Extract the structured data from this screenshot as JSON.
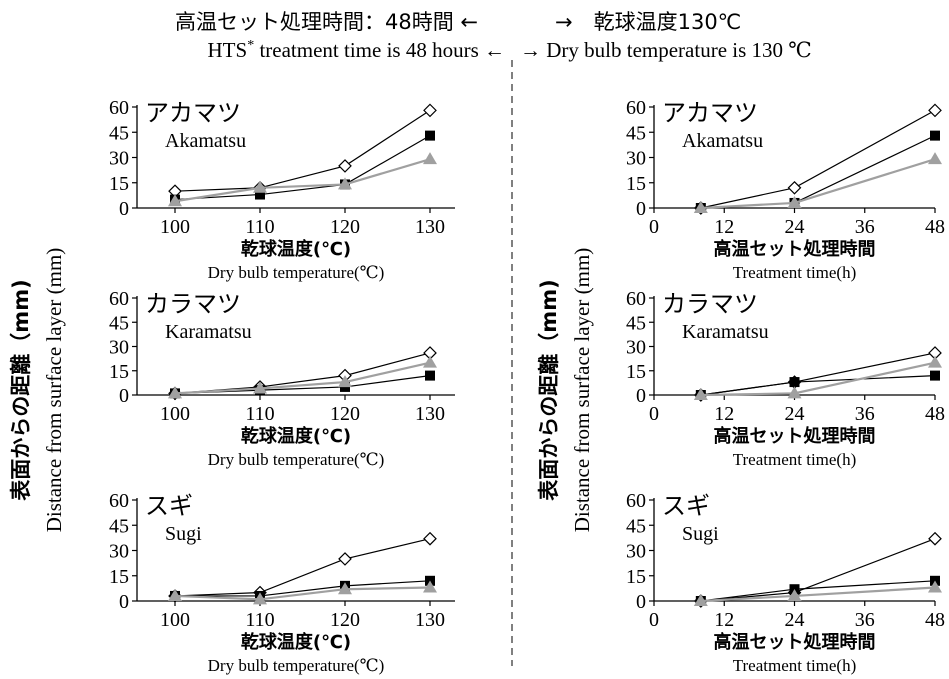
{
  "header": {
    "left_jp": "高温セット処理時間：48時間 ←",
    "right_jp": "→　乾球温度130℃",
    "left_en_pre": "HTS",
    "left_en_sup": "*",
    "left_en_post": " treatment time is 48 hours ←",
    "right_en": "→  Dry bulb temperature is 130 ℃"
  },
  "y_axis_label": {
    "jp": "表面からの距離（mm)",
    "en": "Distance from surface layer (mm)"
  },
  "chart_data": [
    {
      "type": "line",
      "panel": "left-1",
      "species_jp": "アカマツ",
      "species_en": "Akamatsu",
      "xlabel_jp": "乾球温度(℃)",
      "xlabel_en": "Dry bulb temperature(℃)",
      "x": [
        100,
        110,
        120,
        130
      ],
      "x_ticks": [
        "100",
        "110",
        "120",
        "130"
      ],
      "ylim": [
        0,
        60
      ],
      "y_ticks": [
        "0",
        "15",
        "30",
        "45",
        "60"
      ],
      "series": [
        {
          "marker": "diamond-open",
          "color": "#000000",
          "values": [
            10,
            12,
            25,
            58
          ]
        },
        {
          "marker": "square-filled",
          "color": "#000000",
          "values": [
            5,
            8,
            14,
            43
          ]
        },
        {
          "marker": "triangle-filled",
          "color": "#a0a0a0",
          "values": [
            4,
            12,
            14,
            29
          ]
        }
      ]
    },
    {
      "type": "line",
      "panel": "right-1",
      "species_jp": "アカマツ",
      "species_en": "Akamatsu",
      "xlabel_jp": "高温セット処理時間",
      "xlabel_en": "Treatment time(h)",
      "x": [
        8,
        24,
        48
      ],
      "x_ticks": [
        "0",
        "12",
        "24",
        "36",
        "48"
      ],
      "xlim": [
        0,
        48
      ],
      "ylim": [
        0,
        60
      ],
      "y_ticks": [
        "0",
        "15",
        "30",
        "45",
        "60"
      ],
      "series": [
        {
          "marker": "diamond-open",
          "color": "#000000",
          "values": [
            0,
            12,
            58
          ]
        },
        {
          "marker": "square-filled",
          "color": "#000000",
          "values": [
            0,
            3,
            43
          ]
        },
        {
          "marker": "triangle-filled",
          "color": "#a0a0a0",
          "values": [
            0,
            3,
            29
          ]
        }
      ]
    },
    {
      "type": "line",
      "panel": "left-2",
      "species_jp": "カラマツ",
      "species_en": "Karamatsu",
      "xlabel_jp": "乾球温度(℃)",
      "xlabel_en": "Dry bulb temperature(℃)",
      "x": [
        100,
        110,
        120,
        130
      ],
      "x_ticks": [
        "100",
        "110",
        "120",
        "130"
      ],
      "ylim": [
        0,
        60
      ],
      "y_ticks": [
        "0",
        "15",
        "30",
        "45",
        "60"
      ],
      "series": [
        {
          "marker": "diamond-open",
          "color": "#000000",
          "values": [
            1,
            5,
            12,
            26
          ]
        },
        {
          "marker": "square-filled",
          "color": "#000000",
          "values": [
            1,
            3,
            5,
            12
          ]
        },
        {
          "marker": "triangle-filled",
          "color": "#a0a0a0",
          "values": [
            1,
            4,
            8,
            20
          ]
        }
      ]
    },
    {
      "type": "line",
      "panel": "right-2",
      "species_jp": "カラマツ",
      "species_en": "Karamatsu",
      "xlabel_jp": "高温セット処理時間",
      "xlabel_en": "Treatment time(h)",
      "x": [
        8,
        24,
        48
      ],
      "x_ticks": [
        "0",
        "12",
        "24",
        "36",
        "48"
      ],
      "xlim": [
        0,
        48
      ],
      "ylim": [
        0,
        60
      ],
      "y_ticks": [
        "0",
        "15",
        "30",
        "45",
        "60"
      ],
      "series": [
        {
          "marker": "diamond-open",
          "color": "#000000",
          "values": [
            0,
            8,
            26
          ]
        },
        {
          "marker": "square-filled",
          "color": "#000000",
          "values": [
            0,
            8,
            12
          ]
        },
        {
          "marker": "triangle-filled",
          "color": "#a0a0a0",
          "values": [
            0,
            1,
            20
          ]
        }
      ]
    },
    {
      "type": "line",
      "panel": "left-3",
      "species_jp": "スギ",
      "species_en": "Sugi",
      "xlabel_jp": "乾球温度(℃)",
      "xlabel_en": "Dry bulb temperature(℃)",
      "x": [
        100,
        110,
        120,
        130
      ],
      "x_ticks": [
        "100",
        "110",
        "120",
        "130"
      ],
      "ylim": [
        0,
        60
      ],
      "y_ticks": [
        "0",
        "15",
        "30",
        "45",
        "60"
      ],
      "series": [
        {
          "marker": "diamond-open",
          "color": "#000000",
          "values": [
            3,
            5,
            25,
            37
          ]
        },
        {
          "marker": "square-filled",
          "color": "#000000",
          "values": [
            3,
            3,
            9,
            12
          ]
        },
        {
          "marker": "triangle-filled",
          "color": "#a0a0a0",
          "values": [
            3,
            1,
            7,
            8
          ]
        }
      ]
    },
    {
      "type": "line",
      "panel": "right-3",
      "species_jp": "スギ",
      "species_en": "Sugi",
      "xlabel_jp": "高温セット処理時間",
      "xlabel_en": "Treatment time(h)",
      "x": [
        8,
        24,
        48
      ],
      "x_ticks": [
        "0",
        "12",
        "24",
        "36",
        "48"
      ],
      "xlim": [
        0,
        48
      ],
      "ylim": [
        0,
        60
      ],
      "y_ticks": [
        "0",
        "15",
        "30",
        "45",
        "60"
      ],
      "series": [
        {
          "marker": "diamond-open",
          "color": "#000000",
          "values": [
            0,
            5,
            37
          ]
        },
        {
          "marker": "square-filled",
          "color": "#000000",
          "values": [
            0,
            7,
            12
          ]
        },
        {
          "marker": "triangle-filled",
          "color": "#a0a0a0",
          "values": [
            0,
            3,
            8
          ]
        }
      ]
    }
  ]
}
